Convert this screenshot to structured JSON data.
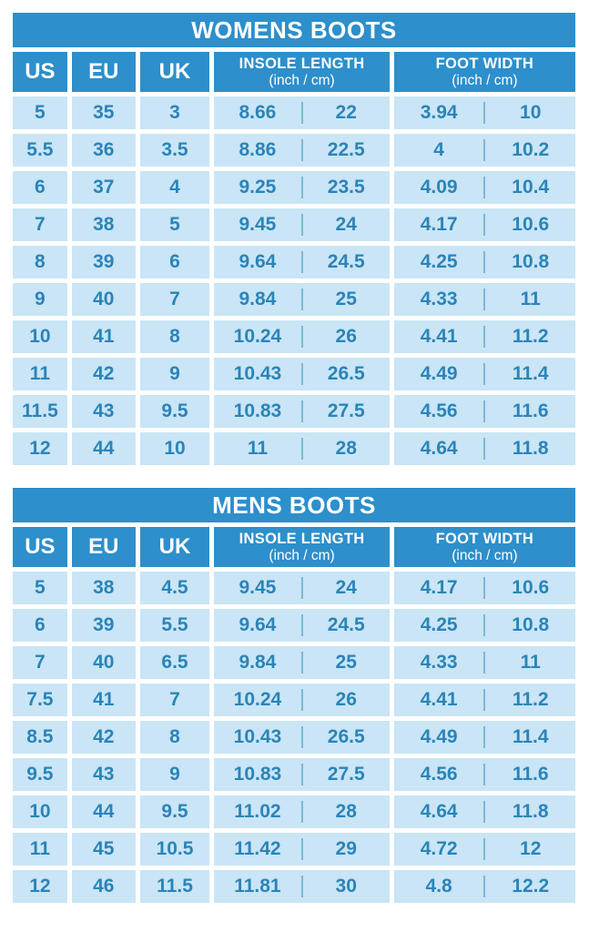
{
  "theme": {
    "header_blue": "#2D8FCB",
    "cell_blue": "#C9E5F6",
    "text_blue": "#2B84B8",
    "divider_blue": "#7FB7D9",
    "background": "#ffffff",
    "header_text": "#ffffff"
  },
  "chart_data": [
    {
      "type": "table",
      "title": "WOMENS BOOTS",
      "header": {
        "us": "US",
        "eu": "EU",
        "uk": "UK",
        "insole_label": "INSOLE LENGTH",
        "insole_sub": "(inch / cm)",
        "foot_label": "FOOT WIDTH",
        "foot_sub": "(inch / cm)"
      },
      "columns": [
        "US",
        "EU",
        "UK",
        "INSOLE LENGTH inch",
        "INSOLE LENGTH cm",
        "FOOT WIDTH inch",
        "FOOT WIDTH cm"
      ],
      "rows": [
        [
          "5",
          "35",
          "3",
          "8.66",
          "22",
          "3.94",
          "10"
        ],
        [
          "5.5",
          "36",
          "3.5",
          "8.86",
          "22.5",
          "4",
          "10.2"
        ],
        [
          "6",
          "37",
          "4",
          "9.25",
          "23.5",
          "4.09",
          "10.4"
        ],
        [
          "7",
          "38",
          "5",
          "9.45",
          "24",
          "4.17",
          "10.6"
        ],
        [
          "8",
          "39",
          "6",
          "9.64",
          "24.5",
          "4.25",
          "10.8"
        ],
        [
          "9",
          "40",
          "7",
          "9.84",
          "25",
          "4.33",
          "11"
        ],
        [
          "10",
          "41",
          "8",
          "10.24",
          "26",
          "4.41",
          "11.2"
        ],
        [
          "11",
          "42",
          "9",
          "10.43",
          "26.5",
          "4.49",
          "11.4"
        ],
        [
          "11.5",
          "43",
          "9.5",
          "10.83",
          "27.5",
          "4.56",
          "11.6"
        ],
        [
          "12",
          "44",
          "10",
          "11",
          "28",
          "4.64",
          "11.8"
        ]
      ]
    },
    {
      "type": "table",
      "title": "MENS BOOTS",
      "header": {
        "us": "US",
        "eu": "EU",
        "uk": "UK",
        "insole_label": "INSOLE LENGTH",
        "insole_sub": "(inch / cm)",
        "foot_label": "FOOT WIDTH",
        "foot_sub": "(inch / cm)"
      },
      "columns": [
        "US",
        "EU",
        "UK",
        "INSOLE LENGTH inch",
        "INSOLE LENGTH cm",
        "FOOT WIDTH inch",
        "FOOT WIDTH cm"
      ],
      "rows": [
        [
          "5",
          "38",
          "4.5",
          "9.45",
          "24",
          "4.17",
          "10.6"
        ],
        [
          "6",
          "39",
          "5.5",
          "9.64",
          "24.5",
          "4.25",
          "10.8"
        ],
        [
          "7",
          "40",
          "6.5",
          "9.84",
          "25",
          "4.33",
          "11"
        ],
        [
          "7.5",
          "41",
          "7",
          "10.24",
          "26",
          "4.41",
          "11.2"
        ],
        [
          "8.5",
          "42",
          "8",
          "10.43",
          "26.5",
          "4.49",
          "11.4"
        ],
        [
          "9.5",
          "43",
          "9",
          "10.83",
          "27.5",
          "4.56",
          "11.6"
        ],
        [
          "10",
          "44",
          "9.5",
          "11.02",
          "28",
          "4.64",
          "11.8"
        ],
        [
          "11",
          "45",
          "10.5",
          "11.42",
          "29",
          "4.72",
          "12"
        ],
        [
          "12",
          "46",
          "11.5",
          "11.81",
          "30",
          "4.8",
          "12.2"
        ]
      ]
    }
  ]
}
